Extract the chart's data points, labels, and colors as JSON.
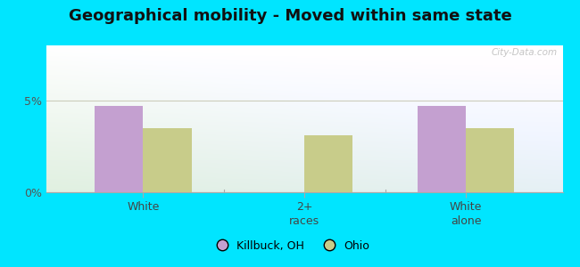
{
  "title": "Geographical mobility - Moved within same state",
  "categories": [
    "White",
    "2+\nraces",
    "White\nalone"
  ],
  "killbuck_values": [
    4.7,
    0,
    4.7
  ],
  "ohio_values": [
    3.5,
    3.1,
    3.5
  ],
  "killbuck_color": "#c4a0d0",
  "ohio_color": "#c8cc8a",
  "bar_width": 0.3,
  "ylim": [
    0,
    8
  ],
  "yticks": [
    0,
    5
  ],
  "ytick_labels": [
    "0%",
    "5%"
  ],
  "outer_bg": "#00e5ff",
  "legend_labels": [
    "Killbuck, OH",
    "Ohio"
  ],
  "watermark": "City-Data.com",
  "bg_gradient_colors": [
    "#d8eeda",
    "#eef8f0",
    "#e0f4f0"
  ],
  "gridline_color": "#ddddcc",
  "title_fontsize": 13
}
